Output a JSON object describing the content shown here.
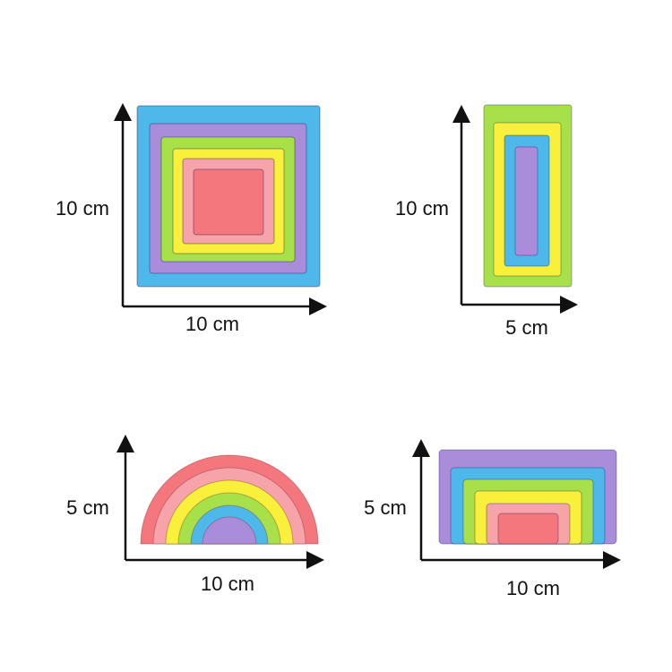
{
  "colors": {
    "blue": "#4fb8ea",
    "purple": "#a98ddb",
    "green": "#a8e04a",
    "yellow": "#f8f03a",
    "pink": "#f6a3aa",
    "red": "#f5777e",
    "axis": "#111111"
  },
  "products": [
    {
      "shape": "nested squares",
      "height_label": "10 cm",
      "width_label": "10 cm",
      "layers": [
        "blue",
        "purple",
        "green",
        "yellow",
        "pink",
        "red"
      ]
    },
    {
      "shape": "nested rectangles",
      "height_label": "10 cm",
      "width_label": "5 cm",
      "layers": [
        "green",
        "yellow",
        "blue",
        "purple"
      ]
    },
    {
      "shape": "rainbow",
      "height_label": "5 cm",
      "width_label": "10 cm",
      "layers": [
        "red",
        "pink",
        "yellow",
        "green",
        "blue",
        "purple"
      ]
    },
    {
      "shape": "nested arches",
      "height_label": "5 cm",
      "width_label": "10 cm",
      "layers": [
        "purple",
        "blue",
        "green",
        "yellow",
        "pink",
        "red"
      ]
    }
  ]
}
